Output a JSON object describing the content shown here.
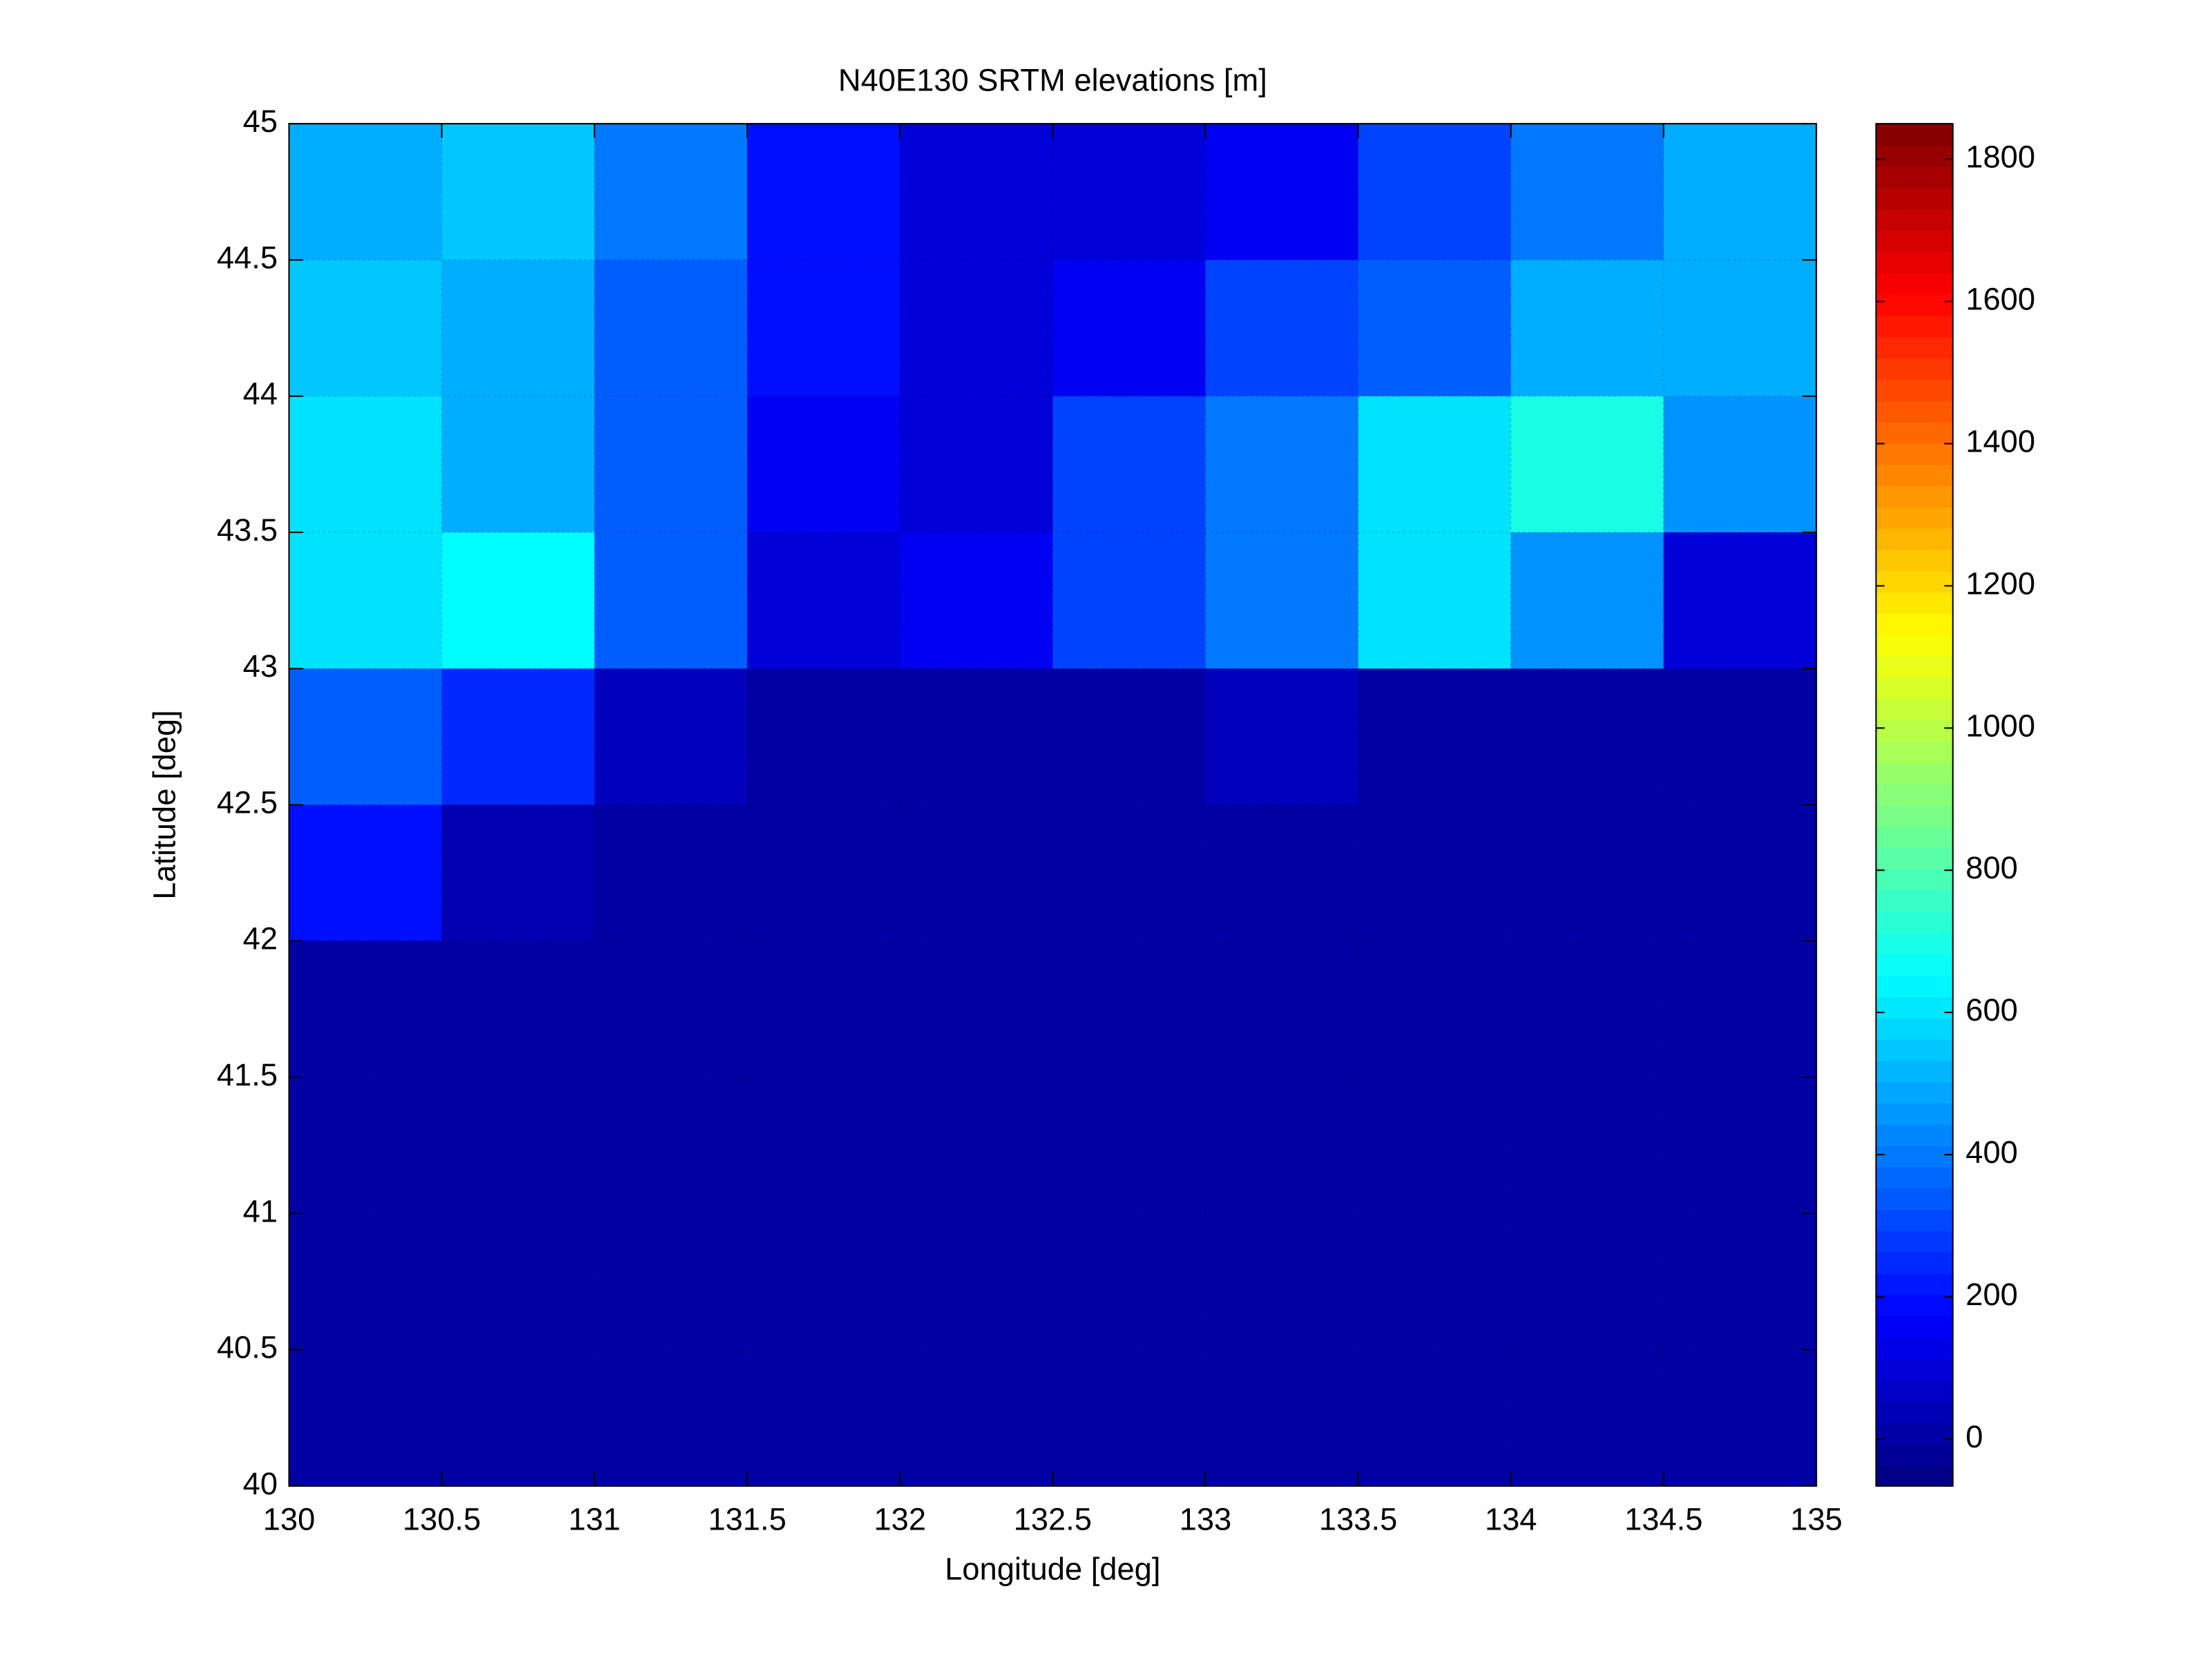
{
  "chart_data": {
    "type": "heatmap",
    "title": "N40E130 SRTM elevations [m]",
    "xlabel": "Longitude [deg]",
    "ylabel": "Latitude [deg]",
    "x": [
      130.25,
      130.75,
      131.25,
      131.75,
      132.25,
      132.75,
      133.25,
      133.75,
      134.25,
      134.75
    ],
    "y": [
      44.75,
      44.25,
      43.75,
      43.25,
      42.75,
      42.25,
      41.75,
      41.25,
      40.75,
      40.25
    ],
    "values": [
      [
        500,
        550,
        400,
        200,
        100,
        100,
        150,
        300,
        400,
        500
      ],
      [
        550,
        500,
        350,
        200,
        100,
        150,
        300,
        350,
        500,
        500
      ],
      [
        600,
        500,
        350,
        150,
        100,
        300,
        400,
        600,
        700,
        450
      ],
      [
        600,
        650,
        350,
        100,
        150,
        300,
        400,
        600,
        450,
        100
      ],
      [
        350,
        250,
        50,
        0,
        0,
        0,
        50,
        0,
        0,
        0
      ],
      [
        200,
        30,
        0,
        0,
        0,
        0,
        0,
        0,
        0,
        0
      ],
      [
        0,
        0,
        0,
        0,
        0,
        0,
        0,
        0,
        0,
        0
      ],
      [
        0,
        0,
        0,
        0,
        0,
        0,
        0,
        0,
        0,
        0
      ],
      [
        0,
        0,
        0,
        0,
        0,
        0,
        0,
        0,
        0,
        0
      ],
      [
        0,
        0,
        0,
        0,
        0,
        0,
        0,
        0,
        0,
        0
      ]
    ],
    "xlim": [
      130,
      135
    ],
    "ylim": [
      40,
      45
    ],
    "xticks": [
      130,
      130.5,
      131,
      131.5,
      132,
      132.5,
      133,
      133.5,
      134,
      134.5,
      135
    ],
    "yticks": [
      40,
      40.5,
      41,
      41.5,
      42,
      42.5,
      43,
      43.5,
      44,
      44.5,
      45
    ],
    "clim": [
      -66,
      1850
    ],
    "cticks": [
      0,
      200,
      400,
      600,
      800,
      1000,
      1200,
      1400,
      1600,
      1800
    ],
    "colormap": "jet",
    "grid": true
  }
}
